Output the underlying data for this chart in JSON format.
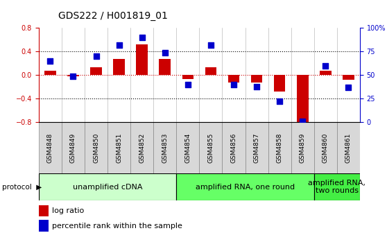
{
  "title": "GDS222 / H001819_01",
  "samples": [
    "GSM4848",
    "GSM4849",
    "GSM4850",
    "GSM4851",
    "GSM4852",
    "GSM4853",
    "GSM4854",
    "GSM4855",
    "GSM4856",
    "GSM4857",
    "GSM4858",
    "GSM4859",
    "GSM4860",
    "GSM4861"
  ],
  "log_ratio": [
    0.08,
    -0.02,
    0.13,
    0.27,
    0.52,
    0.27,
    -0.07,
    0.13,
    -0.12,
    -0.13,
    -0.28,
    -0.82,
    0.08,
    -0.08
  ],
  "percentile": [
    65,
    49,
    70,
    82,
    90,
    74,
    40,
    82,
    40,
    38,
    22,
    1,
    60,
    37
  ],
  "ylim_left": [
    -0.8,
    0.8
  ],
  "ylim_right": [
    0,
    100
  ],
  "yticks_left": [
    -0.8,
    -0.4,
    0.0,
    0.4,
    0.8
  ],
  "yticks_right": [
    0,
    25,
    50,
    75,
    100
  ],
  "ytick_labels_right": [
    "0",
    "25",
    "50",
    "75",
    "100%"
  ],
  "bar_color": "#cc0000",
  "dot_color": "#0000cc",
  "background_color": "#ffffff",
  "protocol_groups": [
    {
      "label": "unamplified cDNA",
      "start": 0,
      "end": 5,
      "color": "#ccffcc"
    },
    {
      "label": "amplified RNA, one round",
      "start": 6,
      "end": 11,
      "color": "#66ff66"
    },
    {
      "label": "amplified RNA,\ntwo rounds",
      "start": 12,
      "end": 13,
      "color": "#44ee44"
    }
  ],
  "legend_items": [
    {
      "color": "#cc0000",
      "label": "log ratio"
    },
    {
      "color": "#0000cc",
      "label": "percentile rank within the sample"
    }
  ],
  "title_fontsize": 10,
  "tick_fontsize": 7,
  "sample_fontsize": 6.5,
  "proto_fontsize": 8,
  "bar_width": 0.5,
  "dot_size": 40,
  "sample_bg": "#d8d8d8"
}
